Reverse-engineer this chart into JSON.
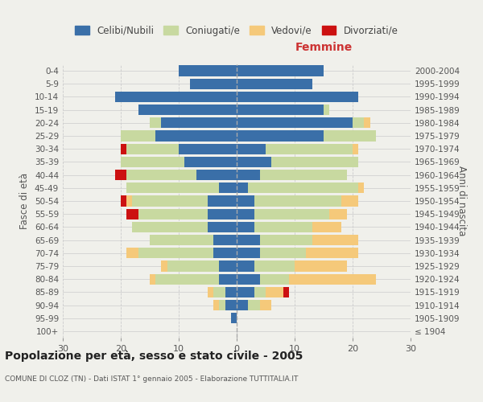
{
  "age_groups": [
    "100+",
    "95-99",
    "90-94",
    "85-89",
    "80-84",
    "75-79",
    "70-74",
    "65-69",
    "60-64",
    "55-59",
    "50-54",
    "45-49",
    "40-44",
    "35-39",
    "30-34",
    "25-29",
    "20-24",
    "15-19",
    "10-14",
    "5-9",
    "0-4"
  ],
  "birth_years": [
    "≤ 1904",
    "1905-1909",
    "1910-1914",
    "1915-1919",
    "1920-1924",
    "1925-1929",
    "1930-1934",
    "1935-1939",
    "1940-1944",
    "1945-1949",
    "1950-1954",
    "1955-1959",
    "1960-1964",
    "1965-1969",
    "1970-1974",
    "1975-1979",
    "1980-1984",
    "1985-1989",
    "1990-1994",
    "1995-1999",
    "2000-2004"
  ],
  "colors": {
    "celibi": "#3a6fa8",
    "coniugati": "#c8d9a0",
    "vedovi": "#f5c97a",
    "divorziati": "#cc1111"
  },
  "males": {
    "celibi": [
      0,
      1,
      2,
      2,
      3,
      3,
      4,
      4,
      5,
      5,
      5,
      3,
      7,
      9,
      10,
      14,
      13,
      17,
      21,
      8,
      10
    ],
    "coniugati": [
      0,
      0,
      1,
      2,
      11,
      9,
      13,
      11,
      13,
      12,
      13,
      16,
      12,
      11,
      9,
      6,
      2,
      0,
      0,
      0,
      0
    ],
    "vedovi": [
      0,
      0,
      1,
      1,
      1,
      1,
      2,
      0,
      0,
      0,
      1,
      0,
      0,
      0,
      0,
      0,
      0,
      0,
      0,
      0,
      0
    ],
    "divorziati": [
      0,
      0,
      0,
      0,
      0,
      0,
      0,
      0,
      0,
      2,
      1,
      0,
      2,
      0,
      1,
      0,
      0,
      0,
      0,
      0,
      0
    ]
  },
  "females": {
    "celibi": [
      0,
      0,
      2,
      3,
      4,
      3,
      4,
      4,
      3,
      3,
      3,
      2,
      4,
      6,
      5,
      15,
      20,
      15,
      21,
      13,
      15
    ],
    "coniugati": [
      0,
      0,
      2,
      2,
      5,
      7,
      8,
      9,
      10,
      13,
      15,
      19,
      15,
      15,
      15,
      9,
      2,
      1,
      0,
      0,
      0
    ],
    "vedovi": [
      0,
      0,
      2,
      3,
      15,
      9,
      9,
      8,
      5,
      3,
      3,
      1,
      0,
      0,
      1,
      0,
      1,
      0,
      0,
      0,
      0
    ],
    "divorziati": [
      0,
      0,
      0,
      1,
      0,
      0,
      0,
      0,
      0,
      0,
      0,
      0,
      0,
      0,
      0,
      0,
      0,
      0,
      0,
      0,
      0
    ]
  },
  "xlim": 30,
  "title": "Popolazione per età, sesso e stato civile - 2005",
  "subtitle": "COMUNE DI CLOZ (TN) - Dati ISTAT 1° gennaio 2005 - Elaborazione TUTTITALIA.IT",
  "xlabel_right": "Femmine",
  "ylabel_left": "Fasce di età",
  "ylabel_right": "Anni di nascita",
  "bg_color": "#f0f0eb",
  "grid_color": "#cccccc"
}
